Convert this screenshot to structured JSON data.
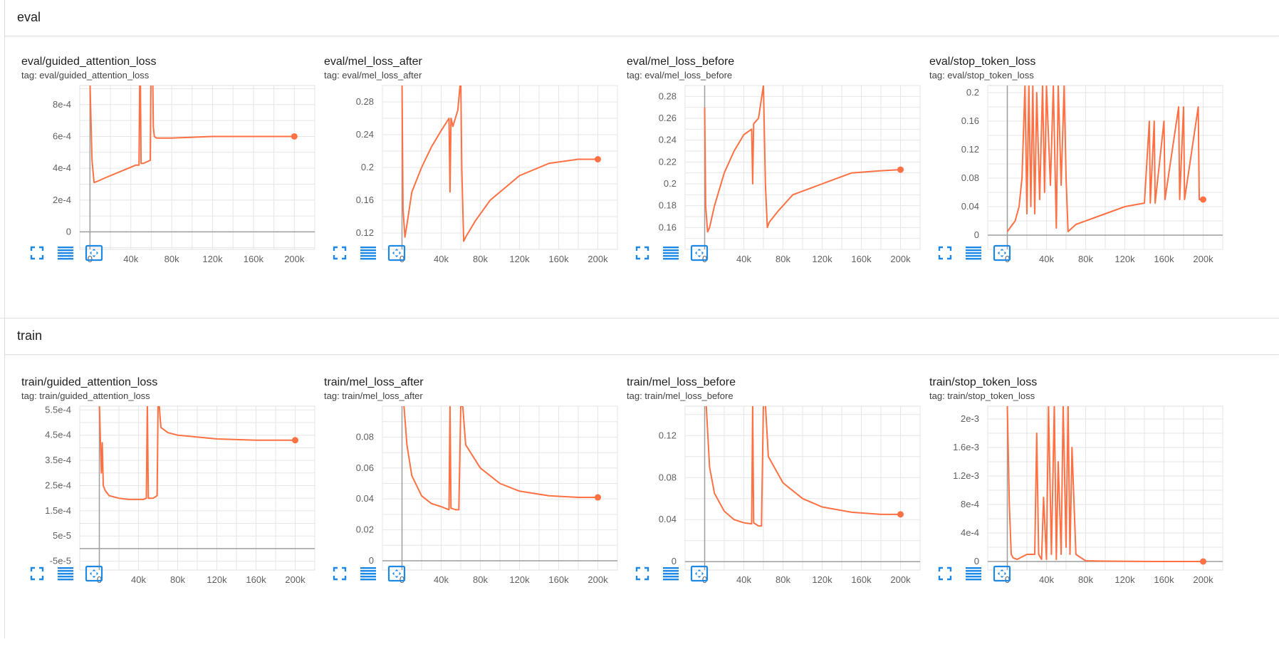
{
  "sections": [
    {
      "title": "eval"
    },
    {
      "title": "train"
    }
  ],
  "accent_color": "#ff7043",
  "icon_color": "#1e88e5",
  "buttons": [
    "fullscreen-icon",
    "data-table-icon",
    "fit-domain-icon"
  ],
  "chart_data": [
    {
      "type": "line",
      "title": "eval/guided_attention_loss",
      "tag": "tag: eval/guided_attention_loss",
      "xlim": [
        -10000,
        220000
      ],
      "ylim": [
        -0.00011,
        0.00092
      ],
      "xticks": [
        0,
        40000,
        80000,
        120000,
        160000,
        200000
      ],
      "xtick_labels": [
        "0",
        "40k",
        "80k",
        "120k",
        "160k",
        "200k"
      ],
      "yticks": [
        0,
        0.0002,
        0.0004,
        0.0006,
        0.0008
      ],
      "ytick_labels": [
        "0",
        "2e-4",
        "4e-4",
        "6e-4",
        "8e-4"
      ],
      "series": [
        {
          "x": [
            0,
            2000,
            4000,
            8000,
            15000,
            30000,
            45000,
            48000,
            49000,
            50000,
            52000,
            59000,
            60000,
            61000,
            62000,
            63000,
            65000,
            80000,
            120000,
            160000,
            200000
          ],
          "y": [
            0.00095,
            0.00045,
            0.00031,
            0.00032,
            0.00034,
            0.00038,
            0.00042,
            0.00042,
            0.0012,
            0.00043,
            0.00043,
            0.00045,
            0.0012,
            0.0012,
            0.00066,
            0.0006,
            0.00059,
            0.00059,
            0.0006,
            0.0006,
            0.0006
          ]
        }
      ]
    },
    {
      "type": "line",
      "title": "eval/mel_loss_after",
      "tag": "tag: eval/mel_loss_after",
      "xlim": [
        -20000,
        220000
      ],
      "ylim": [
        0.1,
        0.3
      ],
      "xticks": [
        0,
        40000,
        80000,
        120000,
        160000,
        200000
      ],
      "xtick_labels": [
        "0",
        "40k",
        "80k",
        "120k",
        "160k",
        "200k"
      ],
      "yticks": [
        0.12,
        0.16,
        0.2,
        0.24,
        0.28
      ],
      "ytick_labels": [
        "0.12",
        "0.16",
        "0.2",
        "0.24",
        "0.28"
      ],
      "series": [
        {
          "x": [
            0,
            1000,
            3000,
            5000,
            10000,
            20000,
            30000,
            40000,
            48000,
            49000,
            50000,
            52000,
            57000,
            60000,
            61000,
            63000,
            65000,
            75000,
            90000,
            120000,
            150000,
            180000,
            200000
          ],
          "y": [
            0.31,
            0.15,
            0.115,
            0.13,
            0.17,
            0.2,
            0.225,
            0.245,
            0.26,
            0.17,
            0.26,
            0.25,
            0.27,
            0.31,
            0.2,
            0.11,
            0.115,
            0.135,
            0.16,
            0.19,
            0.205,
            0.21,
            0.21
          ]
        }
      ]
    },
    {
      "type": "line",
      "title": "eval/mel_loss_before",
      "tag": "tag: eval/mel_loss_before",
      "xlim": [
        -20000,
        220000
      ],
      "ylim": [
        0.14,
        0.29
      ],
      "xticks": [
        0,
        40000,
        80000,
        120000,
        160000,
        200000
      ],
      "xtick_labels": [
        "0",
        "40k",
        "80k",
        "120k",
        "160k",
        "200k"
      ],
      "yticks": [
        0.16,
        0.18,
        0.2,
        0.22,
        0.24,
        0.26,
        0.28
      ],
      "ytick_labels": [
        "0.16",
        "0.18",
        "0.2",
        "0.22",
        "0.24",
        "0.26",
        "0.28"
      ],
      "series": [
        {
          "x": [
            0,
            1000,
            3000,
            5000,
            10000,
            20000,
            30000,
            40000,
            48000,
            49000,
            50000,
            55000,
            60000,
            62000,
            64000,
            66000,
            75000,
            90000,
            120000,
            150000,
            180000,
            200000
          ],
          "y": [
            0.27,
            0.18,
            0.156,
            0.16,
            0.18,
            0.21,
            0.23,
            0.245,
            0.25,
            0.2,
            0.255,
            0.26,
            0.29,
            0.2,
            0.16,
            0.165,
            0.175,
            0.19,
            0.2,
            0.21,
            0.212,
            0.213
          ]
        }
      ]
    },
    {
      "type": "line",
      "title": "eval/stop_token_loss",
      "tag": "tag: eval/stop_token_loss",
      "xlim": [
        -20000,
        220000
      ],
      "ylim": [
        -0.02,
        0.21
      ],
      "xticks": [
        0,
        40000,
        80000,
        120000,
        160000,
        200000
      ],
      "xtick_labels": [
        "0",
        "40k",
        "80k",
        "120k",
        "160k",
        "200k"
      ],
      "yticks": [
        0,
        0.04,
        0.08,
        0.12,
        0.16,
        0.2
      ],
      "ytick_labels": [
        "0",
        "0.04",
        "0.08",
        "0.12",
        "0.16",
        "0.2"
      ],
      "series": [
        {
          "x": [
            0,
            8000,
            12000,
            15000,
            18000,
            20000,
            22000,
            24000,
            26000,
            28000,
            30000,
            33000,
            36000,
            38000,
            40000,
            44000,
            47000,
            50000,
            52000,
            55000,
            58000,
            60000,
            62000,
            70000,
            90000,
            120000,
            140000,
            145000,
            146000,
            150000,
            151000,
            160000,
            161000,
            175000,
            176000,
            180000,
            181000,
            195000,
            196000,
            200000
          ],
          "y": [
            0.005,
            0.02,
            0.04,
            0.08,
            0.21,
            0.03,
            0.21,
            0.04,
            0.21,
            0.03,
            0.2,
            0.05,
            0.21,
            0.06,
            0.21,
            0.07,
            0.21,
            0.01,
            0.21,
            0.07,
            0.21,
            0.08,
            0.005,
            0.015,
            0.025,
            0.04,
            0.045,
            0.16,
            0.045,
            0.16,
            0.045,
            0.16,
            0.05,
            0.18,
            0.05,
            0.18,
            0.05,
            0.18,
            0.05,
            0.05
          ]
        }
      ]
    },
    {
      "type": "line",
      "title": "train/guided_attention_loss",
      "tag": "tag: train/guided_attention_loss",
      "xlim": [
        -20000,
        220000
      ],
      "ylim": [
        -8.5e-05,
        0.000565
      ],
      "xticks": [
        0,
        40000,
        80000,
        120000,
        160000,
        200000
      ],
      "xtick_labels": [
        "0",
        "40k",
        "80k",
        "120k",
        "160k",
        "200k"
      ],
      "yticks": [
        -5e-05,
        5e-05,
        0.00015,
        0.00025,
        0.00035,
        0.00045,
        0.00055
      ],
      "ytick_labels": [
        "-5e-5",
        "5e-5",
        "1.5e-4",
        "2.5e-4",
        "3.5e-4",
        "4.5e-4",
        "5.5e-4"
      ],
      "series": [
        {
          "x": [
            0,
            2000,
            3000,
            4000,
            6000,
            10000,
            20000,
            30000,
            45000,
            48000,
            49000,
            50000,
            55000,
            59000,
            60000,
            61000,
            62000,
            63000,
            70000,
            80000,
            120000,
            160000,
            200000
          ],
          "y": [
            0.00058,
            0.0003,
            0.00042,
            0.00025,
            0.00023,
            0.00021,
            0.0002,
            0.000195,
            0.000195,
            0.0002,
            0.00058,
            0.0002,
            0.0002,
            0.00021,
            0.00058,
            0.00058,
            0.00052,
            0.00048,
            0.00046,
            0.00045,
            0.000435,
            0.00043,
            0.00043
          ]
        }
      ]
    },
    {
      "type": "line",
      "title": "train/mel_loss_after",
      "tag": "tag: train/mel_loss_after",
      "xlim": [
        -20000,
        220000
      ],
      "ylim": [
        -0.006,
        0.1
      ],
      "xticks": [
        0,
        40000,
        80000,
        120000,
        160000,
        200000
      ],
      "xtick_labels": [
        "0",
        "40k",
        "80k",
        "120k",
        "160k",
        "200k"
      ],
      "yticks": [
        0,
        0.02,
        0.04,
        0.06,
        0.08
      ],
      "ytick_labels": [
        "0",
        "0.02",
        "0.04",
        "0.06",
        "0.08"
      ],
      "series": [
        {
          "x": [
            2000,
            5000,
            10000,
            20000,
            30000,
            40000,
            48000,
            49000,
            50000,
            55000,
            58000,
            60000,
            62000,
            65000,
            80000,
            100000,
            120000,
            150000,
            180000,
            200000
          ],
          "y": [
            0.1,
            0.075,
            0.055,
            0.042,
            0.037,
            0.035,
            0.033,
            0.1,
            0.034,
            0.033,
            0.033,
            0.1,
            0.1,
            0.075,
            0.06,
            0.05,
            0.045,
            0.042,
            0.041,
            0.041
          ]
        }
      ]
    },
    {
      "type": "line",
      "title": "train/mel_loss_before",
      "tag": "tag: train/mel_loss_before",
      "xlim": [
        -20000,
        220000
      ],
      "ylim": [
        -0.008,
        0.148
      ],
      "xticks": [
        0,
        40000,
        80000,
        120000,
        160000,
        200000
      ],
      "xtick_labels": [
        "0",
        "40k",
        "80k",
        "120k",
        "160k",
        "200k"
      ],
      "yticks": [
        0,
        0.04,
        0.08,
        0.12
      ],
      "ytick_labels": [
        "0",
        "0.04",
        "0.08",
        "0.12"
      ],
      "series": [
        {
          "x": [
            1500,
            5000,
            10000,
            20000,
            30000,
            40000,
            48000,
            49000,
            50000,
            55000,
            58000,
            60000,
            62000,
            65000,
            80000,
            100000,
            120000,
            150000,
            180000,
            200000
          ],
          "y": [
            0.15,
            0.09,
            0.065,
            0.048,
            0.04,
            0.037,
            0.036,
            0.15,
            0.037,
            0.034,
            0.034,
            0.15,
            0.15,
            0.1,
            0.075,
            0.06,
            0.052,
            0.047,
            0.045,
            0.045
          ]
        }
      ]
    },
    {
      "type": "line",
      "title": "train/stop_token_loss",
      "tag": "tag: train/stop_token_loss",
      "xlim": [
        -20000,
        220000
      ],
      "ylim": [
        -0.00012,
        0.00218
      ],
      "xticks": [
        0,
        40000,
        80000,
        120000,
        160000,
        200000
      ],
      "xtick_labels": [
        "0",
        "40k",
        "80k",
        "120k",
        "160k",
        "200k"
      ],
      "yticks": [
        0,
        0.0004,
        0.0008,
        0.0012,
        0.0016,
        0.002
      ],
      "ytick_labels": [
        "0",
        "4e-4",
        "8e-4",
        "1.2e-3",
        "1.6e-3",
        "2e-3"
      ],
      "series": [
        {
          "x": [
            0,
            2000,
            4000,
            6000,
            10000,
            20000,
            28000,
            30000,
            32000,
            35000,
            37000,
            40000,
            42000,
            45000,
            48000,
            50000,
            52000,
            55000,
            57000,
            60000,
            62000,
            64000,
            66000,
            70000,
            80000,
            100000,
            150000,
            200000
          ],
          "y": [
            0.0022,
            0.0008,
            0.0001,
            5e-05,
            3e-05,
            0.0001,
            0.0001,
            0.0018,
            0.0001,
            3e-05,
            0.0009,
            3e-05,
            0.0022,
            0.0001,
            0.0022,
            3e-05,
            0.0014,
            0.0001,
            0.0022,
            0.0002,
            0.0022,
            0.0001,
            0.0016,
            0.0001,
            1e-05,
            5e-06,
            0.0,
            0.0
          ]
        }
      ]
    }
  ]
}
